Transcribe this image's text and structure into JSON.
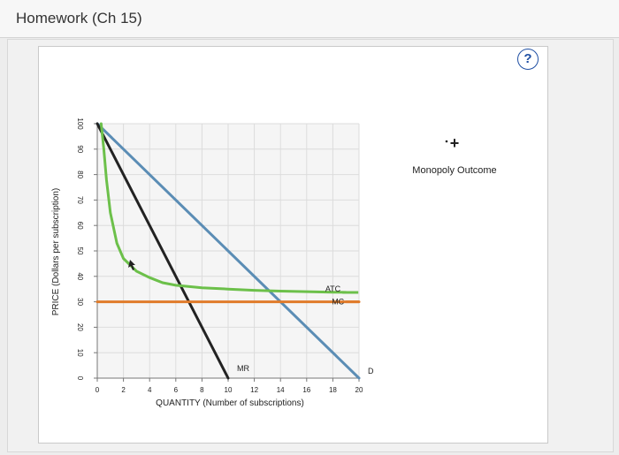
{
  "header": {
    "title": "Homework (Ch 15)"
  },
  "help": {
    "symbol": "?"
  },
  "tool_palette": {
    "symbol": "+",
    "label": "Monopoly Outcome"
  },
  "chart_data": {
    "type": "line",
    "xlabel": "QUANTITY (Number of subscriptions)",
    "ylabel": "PRICE (Dollars per subscription)",
    "xlim": [
      0,
      20
    ],
    "ylim": [
      0,
      100
    ],
    "x_ticks": [
      "0",
      "2",
      "4",
      "6",
      "8",
      "10",
      "12",
      "14",
      "16",
      "18",
      "20"
    ],
    "y_ticks": [
      "0",
      "10",
      "20",
      "30",
      "40",
      "50",
      "60",
      "70",
      "80",
      "90",
      "100"
    ],
    "grid": true,
    "series": [
      {
        "name": "D",
        "color": "#5b8db5",
        "points": [
          [
            0,
            100
          ],
          [
            20,
            0
          ]
        ]
      },
      {
        "name": "MR",
        "color": "#222222",
        "points": [
          [
            0,
            100
          ],
          [
            10,
            0
          ]
        ]
      },
      {
        "name": "ATC",
        "color": "#6cc04a",
        "points": [
          [
            0.3,
            100
          ],
          [
            0.5,
            90
          ],
          [
            0.7,
            78
          ],
          [
            1,
            65
          ],
          [
            1.5,
            53
          ],
          [
            2,
            47
          ],
          [
            3,
            42
          ],
          [
            4,
            39.5
          ],
          [
            5,
            37.5
          ],
          [
            6,
            36.5
          ],
          [
            8,
            35.5
          ],
          [
            10,
            35
          ],
          [
            12,
            34.5
          ],
          [
            14,
            34.2
          ],
          [
            16,
            34
          ],
          [
            18,
            33.8
          ],
          [
            19,
            33.7
          ]
        ]
      },
      {
        "name": "MC",
        "color": "#e07b2a",
        "points": [
          [
            0,
            30
          ],
          [
            20,
            30
          ]
        ]
      }
    ]
  }
}
